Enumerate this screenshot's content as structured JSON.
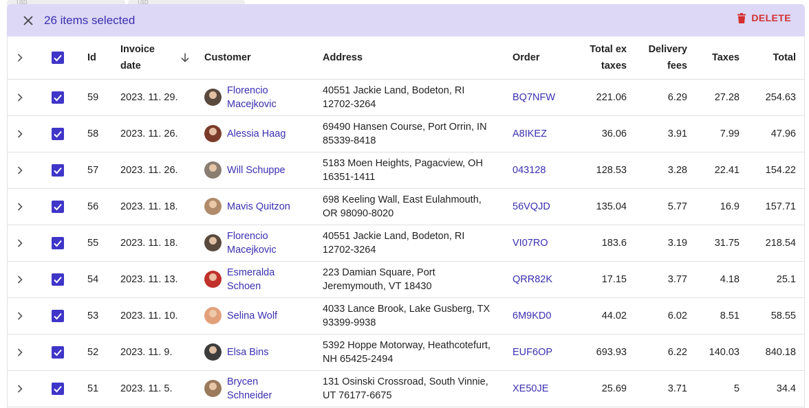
{
  "ghost_tabs": [
    "Tab",
    "Tab"
  ],
  "bulk": {
    "count_label": "26 items selected",
    "delete_label": "DELETE"
  },
  "headers": {
    "id": "Id",
    "invoice_date_line1": "Invoice",
    "invoice_date_line2": "date",
    "customer": "Customer",
    "address": "Address",
    "order": "Order",
    "total_ex_taxes_line1": "Total ex",
    "total_ex_taxes_line2": "taxes",
    "delivery_fees_line1": "Delivery",
    "delivery_fees_line2": "fees",
    "taxes": "Taxes",
    "total": "Total"
  },
  "colors": {
    "accent": "#3f35c8",
    "link": "#3a2fb0",
    "bulk_bg": "#dcd8f6",
    "danger": "#d32f2f"
  },
  "rows": [
    {
      "id": "59",
      "date": "2023. 11. 29.",
      "customer_1": "Florencio",
      "customer_2": "Macejkovic",
      "avatar": "#5a4a3e",
      "address_1": "40551 Jackie Land, Bodeton, RI",
      "address_2": "12702-3264",
      "order": "BQ7NFW",
      "ext": "221.06",
      "fees": "6.29",
      "taxes": "27.28",
      "total": "254.63"
    },
    {
      "id": "58",
      "date": "2023. 11. 26.",
      "customer_1": "Alessia Haag",
      "customer_2": "",
      "avatar": "#7a3b2a",
      "address_1": "69490 Hansen Course, Port Orrin, IN",
      "address_2": "85339-8418",
      "order": "A8IKEZ",
      "ext": "36.06",
      "fees": "3.91",
      "taxes": "7.99",
      "total": "47.96"
    },
    {
      "id": "57",
      "date": "2023. 11. 26.",
      "customer_1": "Will Schuppe",
      "customer_2": "",
      "avatar": "#8a7e72",
      "address_1": "5183 Moen Heights, Pagacview, OH",
      "address_2": "16351-1411",
      "order": "043128",
      "ext": "128.53",
      "fees": "3.28",
      "taxes": "22.41",
      "total": "154.22"
    },
    {
      "id": "56",
      "date": "2023. 11. 18.",
      "customer_1": "Mavis Quitzon",
      "customer_2": "",
      "avatar": "#b08a6a",
      "address_1": "698 Keeling Wall, East Eulahmouth,",
      "address_2": "OR 98090-8020",
      "order": "56VQJD",
      "ext": "135.04",
      "fees": "5.77",
      "taxes": "16.9",
      "total": "157.71"
    },
    {
      "id": "55",
      "date": "2023. 11. 18.",
      "customer_1": "Florencio",
      "customer_2": "Macejkovic",
      "avatar": "#5a4a3e",
      "address_1": "40551 Jackie Land, Bodeton, RI",
      "address_2": "12702-3264",
      "order": "VI07RO",
      "ext": "183.6",
      "fees": "3.19",
      "taxes": "31.75",
      "total": "218.54"
    },
    {
      "id": "54",
      "date": "2023. 11. 13.",
      "customer_1": "Esmeralda",
      "customer_2": "Schoen",
      "avatar": "#c0312b",
      "address_1": "223 Damian Square, Port",
      "address_2": "Jeremymouth, VT 18430",
      "order": "QRR82K",
      "ext": "17.15",
      "fees": "3.77",
      "taxes": "4.18",
      "total": "25.1"
    },
    {
      "id": "53",
      "date": "2023. 11. 10.",
      "customer_1": "Selina Wolf",
      "customer_2": "",
      "avatar": "#e2a07a",
      "address_1": "4033 Lance Brook, Lake Gusberg, TX",
      "address_2": "93399-9938",
      "order": "6M9KD0",
      "ext": "44.02",
      "fees": "6.02",
      "taxes": "8.51",
      "total": "58.55"
    },
    {
      "id": "52",
      "date": "2023. 11. 9.",
      "customer_1": "Elsa Bins",
      "customer_2": "",
      "avatar": "#3c3c3c",
      "address_1": "5392 Hoppe Motorway, Heathcotefurt,",
      "address_2": "NH 65425-2494",
      "order": "EUF6OP",
      "ext": "693.93",
      "fees": "6.22",
      "taxes": "140.03",
      "total": "840.18"
    },
    {
      "id": "51",
      "date": "2023. 11. 5.",
      "customer_1": "Brycen",
      "customer_2": "Schneider",
      "avatar": "#9a7a5a",
      "address_1": "131 Osinski Crossroad, South Vinnie,",
      "address_2": "UT 76177-6675",
      "order": "XE50JE",
      "ext": "25.69",
      "fees": "3.71",
      "taxes": "5",
      "total": "34.4"
    }
  ]
}
